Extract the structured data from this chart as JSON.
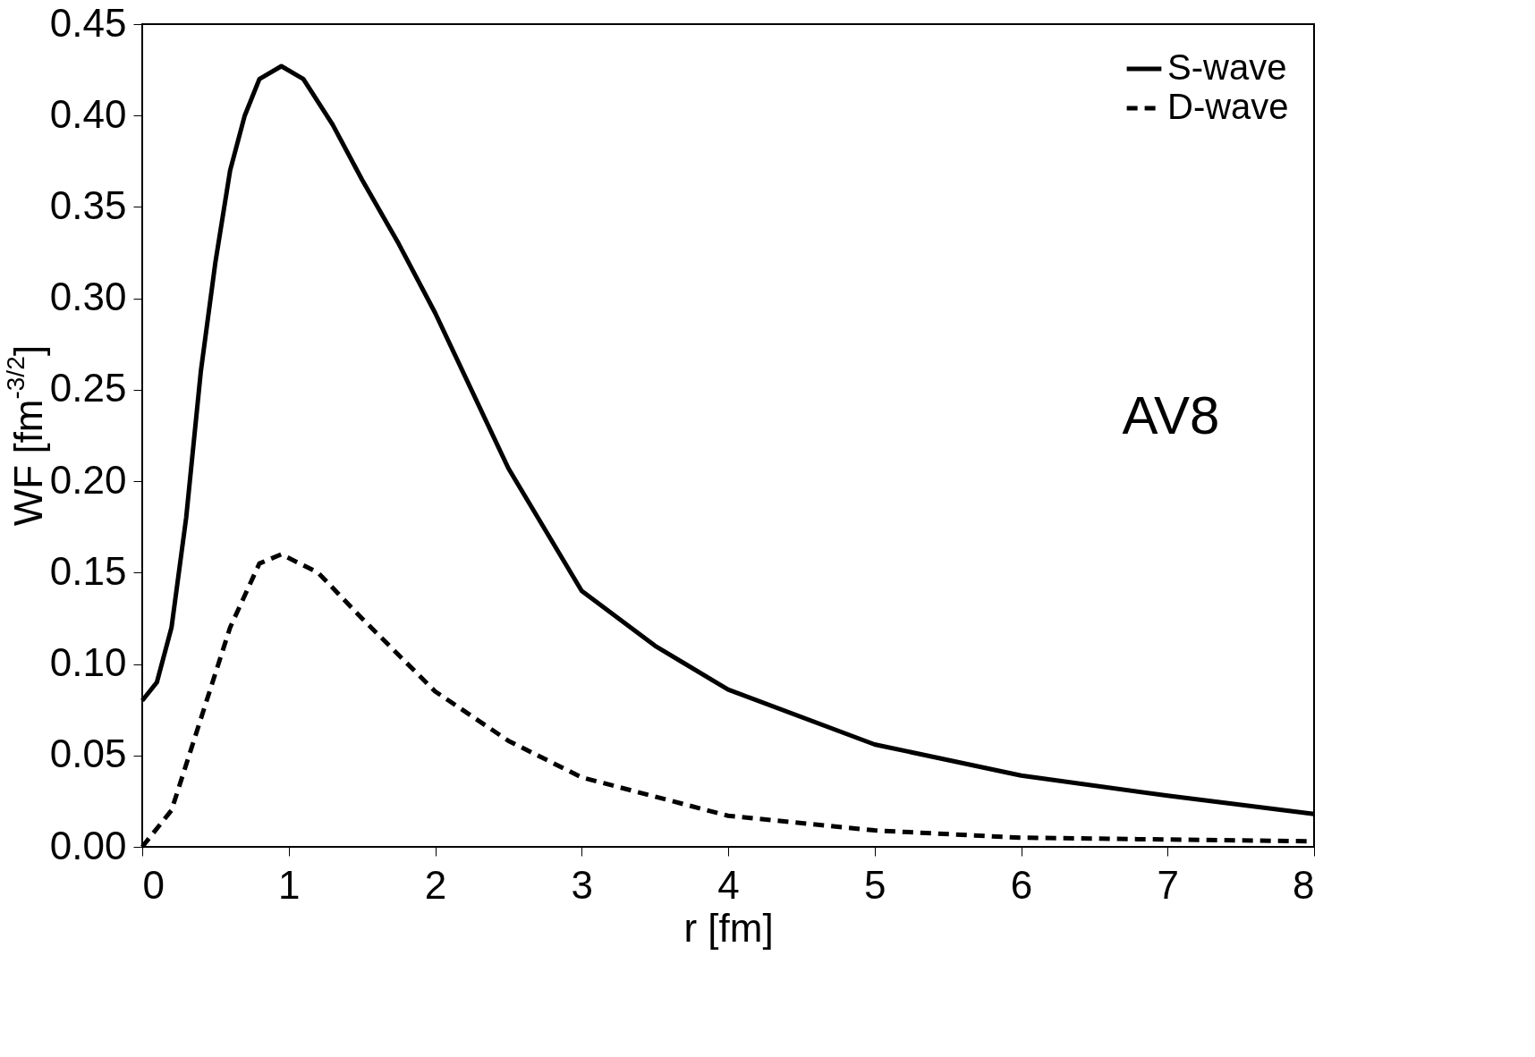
{
  "chart_data": {
    "type": "line",
    "xlabel": "r [fm]",
    "ylabel": "WF [fm$^{-3/2}$]",
    "xlim": [
      0,
      8
    ],
    "xticks": [
      0,
      1,
      2,
      3,
      4,
      5,
      6,
      7,
      8
    ],
    "ylim": [
      0,
      0.45
    ],
    "yticks": [
      {
        "value": 0,
        "label": "0.00"
      },
      {
        "value": 0.05,
        "label": "0.05"
      },
      {
        "value": 0.1,
        "label": "0.10"
      },
      {
        "value": 0.15,
        "label": "0.15"
      },
      {
        "value": 0.2,
        "label": "0.20"
      },
      {
        "value": 0.25,
        "label": "0.25"
      },
      {
        "value": 0.3,
        "label": "0.30"
      },
      {
        "value": 0.35,
        "label": "0.35"
      },
      {
        "value": 0.4,
        "label": "0.40"
      },
      {
        "value": 0.45,
        "label": "0.45"
      }
    ],
    "grid": false,
    "legend": "top right",
    "marker": "none",
    "annotations": [
      "AV8"
    ],
    "series": [
      {
        "name": "S-wave",
        "color": "#000000",
        "line_style": "solid",
        "x": [
          0,
          0.1,
          0.2,
          0.3,
          0.4,
          0.5,
          0.6,
          0.7,
          0.8,
          0.95,
          1.1,
          1.3,
          1.5,
          1.75,
          2,
          2.5,
          3,
          3.5,
          4,
          5,
          6,
          7,
          8
        ],
        "values": [
          0.08,
          0.09,
          0.12,
          0.18,
          0.26,
          0.32,
          0.37,
          0.4,
          0.42,
          0.427,
          0.42,
          0.395,
          0.365,
          0.33,
          0.292,
          0.207,
          0.14,
          0.11,
          0.086,
          0.056,
          0.039,
          0.028,
          0.018
        ]
      },
      {
        "name": "D-wave",
        "color": "#000000",
        "line_style": "dashed",
        "x": [
          0,
          0.2,
          0.4,
          0.6,
          0.8,
          0.95,
          1.2,
          1.5,
          2,
          2.5,
          3,
          4,
          5,
          6,
          7,
          8
        ],
        "values": [
          0,
          0.02,
          0.07,
          0.12,
          0.155,
          0.16,
          0.15,
          0.125,
          0.085,
          0.058,
          0.038,
          0.017,
          0.009,
          0.005,
          0.004,
          0.003
        ]
      }
    ]
  }
}
